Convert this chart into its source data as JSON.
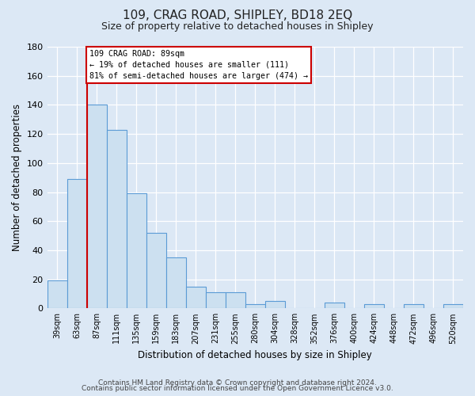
{
  "title": "109, CRAG ROAD, SHIPLEY, BD18 2EQ",
  "subtitle": "Size of property relative to detached houses in Shipley",
  "xlabel": "Distribution of detached houses by size in Shipley",
  "ylabel": "Number of detached properties",
  "bar_labels": [
    "39sqm",
    "63sqm",
    "87sqm",
    "111sqm",
    "135sqm",
    "159sqm",
    "183sqm",
    "207sqm",
    "231sqm",
    "255sqm",
    "280sqm",
    "304sqm",
    "328sqm",
    "352sqm",
    "376sqm",
    "400sqm",
    "424sqm",
    "448sqm",
    "472sqm",
    "496sqm",
    "520sqm"
  ],
  "bar_values": [
    19,
    89,
    140,
    123,
    79,
    52,
    35,
    15,
    11,
    11,
    3,
    5,
    0,
    0,
    4,
    0,
    3,
    0,
    3,
    0,
    3
  ],
  "bar_color": "#cce0f0",
  "bar_edge_color": "#5b9bd5",
  "vline_index": 2,
  "vline_color": "#cc0000",
  "annotation_text": "109 CRAG ROAD: 89sqm\n← 19% of detached houses are smaller (111)\n81% of semi-detached houses are larger (474) →",
  "annotation_box_color": "#ffffff",
  "annotation_box_edge": "#cc0000",
  "ylim": [
    0,
    180
  ],
  "yticks": [
    0,
    20,
    40,
    60,
    80,
    100,
    120,
    140,
    160,
    180
  ],
  "footer_line1": "Contains HM Land Registry data © Crown copyright and database right 2024.",
  "footer_line2": "Contains public sector information licensed under the Open Government Licence v3.0.",
  "bg_color": "#dce8f5",
  "plot_bg_color": "#dce8f5",
  "grid_color": "#ffffff"
}
